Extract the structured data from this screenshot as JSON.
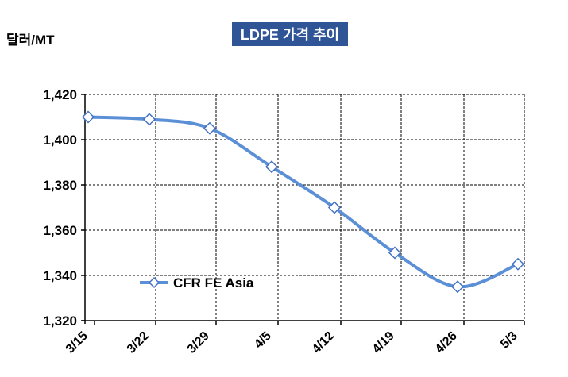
{
  "chart_data": {
    "type": "line",
    "title": "LDPE 가격 추이",
    "ylabel": "달러/MT",
    "xlabel": "",
    "categories": [
      "3/15",
      "3/22",
      "3/29",
      "4/5",
      "4/12",
      "4/19",
      "4/26",
      "5/3"
    ],
    "series": [
      {
        "name": "CFR FE Asia",
        "values": [
          1410,
          1409,
          1405,
          1388,
          1370,
          1350,
          1335,
          1345
        ],
        "color": "#5b8fd6",
        "marker": "diamond"
      }
    ],
    "ylim": [
      1320,
      1420
    ],
    "yticks": [
      1320,
      1340,
      1360,
      1380,
      1400,
      1420
    ],
    "ytick_labels": [
      "1,320",
      "1,340",
      "1,360",
      "1,380",
      "1,400",
      "1,420"
    ],
    "grid": {
      "horizontal": true,
      "vertical": true
    },
    "legend": "inside-bottom-left"
  }
}
